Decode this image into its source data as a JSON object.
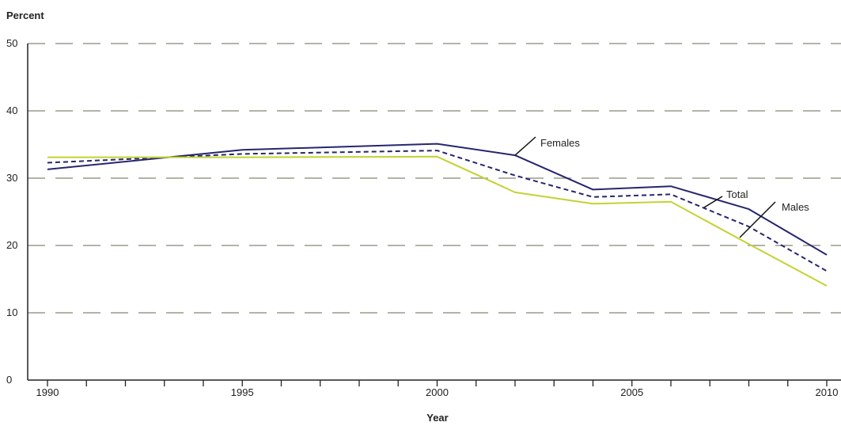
{
  "chart_data": {
    "type": "line",
    "title": "",
    "ylabel": "Percent",
    "xlabel": "Year",
    "xlim": [
      1990,
      2010
    ],
    "ylim": [
      0,
      50
    ],
    "x_ticks": [
      "1990",
      "1995",
      "2000",
      "2005",
      "2010"
    ],
    "y_ticks": [
      "0",
      "10",
      "20",
      "30",
      "40",
      "50"
    ],
    "grid": "horizontal dashed",
    "x": [
      1990,
      1995,
      2000,
      2002,
      2004,
      2006,
      2008,
      2010
    ],
    "series": [
      {
        "name": "Females",
        "style": "solid",
        "color": "#26266e",
        "values": [
          31.3,
          34.2,
          35.1,
          33.4,
          28.3,
          28.8,
          25.4,
          18.6
        ]
      },
      {
        "name": "Total",
        "style": "dashed",
        "color": "#26266e",
        "values": [
          32.3,
          33.6,
          34.1,
          30.4,
          27.2,
          27.6,
          22.8,
          16.2
        ]
      },
      {
        "name": "Males",
        "style": "solid",
        "color": "#c4d232",
        "values": [
          33.1,
          33.1,
          33.2,
          27.9,
          26.2,
          26.5,
          20.2,
          14.0
        ]
      }
    ],
    "annotations": [
      {
        "text": "Females",
        "series": "Females"
      },
      {
        "text": "Total",
        "series": "Total"
      },
      {
        "text": "Males",
        "series": "Males"
      }
    ]
  },
  "colors": {
    "grid": "#9a9a8c",
    "axis": "#222222"
  }
}
